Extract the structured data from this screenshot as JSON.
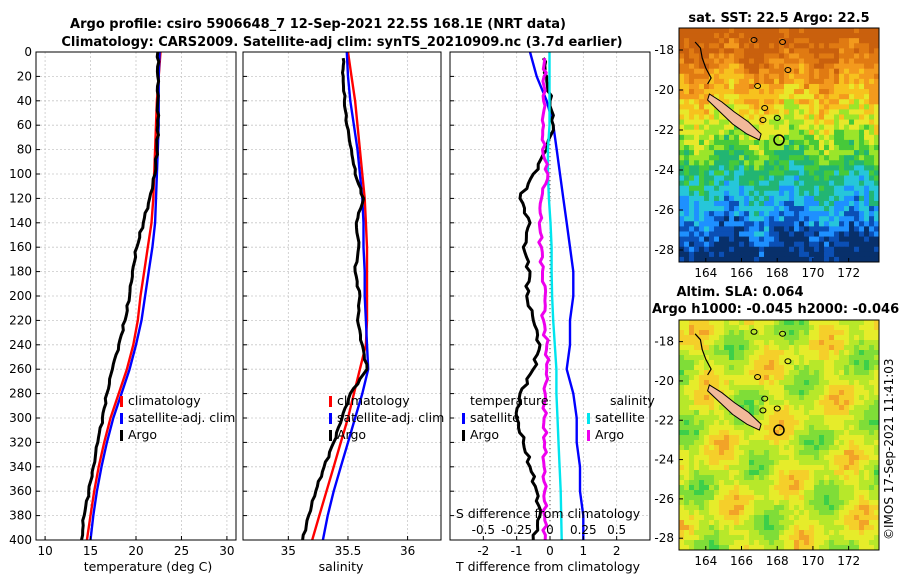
{
  "figure": {
    "title_line1": "Argo profile: csiro 5906648_7 12-Sep-2021 22.5S 168.1E (NRT data)",
    "title_line2": "Climatology: CARS2009. Satellite-adj clim: synTS_20210909.nc (3.7d earlier)",
    "credit": "©IMOS 17-Sep-2021 11:41:03"
  },
  "colors": {
    "climatology": "#ff0000",
    "satellite": "#0000ff",
    "argo": "#000000",
    "satellite_s": "#00e5ee",
    "argo_s": "#ee00ee",
    "land": "#f2b99a"
  },
  "chart_data": [
    {
      "type": "line",
      "id": "temperature",
      "xlabel": "temperature (deg C)",
      "ylabel": "",
      "xlim": [
        9,
        31
      ],
      "xticks": [
        10,
        15,
        20,
        25,
        30
      ],
      "ylim": [
        0,
        400
      ],
      "yticks": [
        0,
        20,
        40,
        60,
        80,
        100,
        120,
        140,
        160,
        180,
        200,
        220,
        240,
        260,
        280,
        300,
        320,
        340,
        360,
        380,
        400
      ],
      "y_reversed": true,
      "grid": true,
      "legend": [
        "climatology",
        "satellite-adj. clim",
        "Argo"
      ],
      "series": [
        {
          "name": "climatology",
          "color": "#ff0000",
          "x": [
            22.7,
            22.5,
            22.3,
            22.2,
            22.1,
            22.0,
            21.9,
            21.7,
            21.3,
            20.9,
            20.5,
            20.2,
            19.7,
            19.0,
            18.1,
            17.2,
            16.5,
            15.9,
            15.4,
            15.0,
            14.6
          ],
          "y": [
            0,
            20,
            40,
            60,
            80,
            100,
            120,
            140,
            160,
            180,
            200,
            220,
            240,
            260,
            280,
            300,
            320,
            340,
            360,
            380,
            400
          ]
        },
        {
          "name": "satellite-adj. clim",
          "color": "#0000ff",
          "x": [
            22.6,
            22.5,
            22.5,
            22.5,
            22.4,
            22.3,
            22.2,
            22.1,
            21.8,
            21.4,
            21.0,
            20.6,
            20.0,
            19.3,
            18.4,
            17.5,
            16.8,
            16.2,
            15.7,
            15.3,
            15.0
          ],
          "y": [
            0,
            20,
            40,
            60,
            80,
            100,
            120,
            140,
            160,
            180,
            200,
            220,
            240,
            260,
            280,
            300,
            320,
            340,
            360,
            380,
            400
          ]
        },
        {
          "name": "Argo",
          "color": "#000000",
          "x": [
            22.4,
            22.4,
            22.4,
            22.4,
            22.3,
            22.1,
            21.5,
            20.8,
            20.1,
            19.6,
            19.3,
            18.8,
            18.1,
            17.4,
            16.8,
            16.3,
            15.8,
            15.3,
            14.8,
            14.3,
            14.0
          ],
          "y": [
            0,
            20,
            40,
            60,
            80,
            100,
            120,
            140,
            160,
            180,
            200,
            220,
            240,
            260,
            280,
            300,
            320,
            340,
            360,
            380,
            400
          ]
        }
      ]
    },
    {
      "type": "line",
      "id": "salinity",
      "xlabel": "salinity",
      "xlim": [
        34.62,
        36.28
      ],
      "xticks": [
        35,
        35.5,
        36
      ],
      "ylim": [
        0,
        400
      ],
      "y_reversed": true,
      "grid": true,
      "legend": [
        "climatology",
        "satellite-adj. clim",
        "Argo"
      ],
      "series": [
        {
          "name": "climatology",
          "color": "#ff0000",
          "x": [
            35.5,
            35.53,
            35.56,
            35.58,
            35.6,
            35.62,
            35.64,
            35.65,
            35.66,
            35.66,
            35.66,
            35.66,
            35.65,
            35.6,
            35.55,
            35.5,
            35.44,
            35.38,
            35.32,
            35.26,
            35.2
          ],
          "y": [
            0,
            20,
            40,
            60,
            80,
            100,
            120,
            140,
            160,
            180,
            200,
            220,
            240,
            260,
            280,
            300,
            320,
            340,
            360,
            380,
            400
          ]
        },
        {
          "name": "satellite-adj. clim",
          "color": "#0000ff",
          "x": [
            35.49,
            35.5,
            35.52,
            35.55,
            35.58,
            35.6,
            35.62,
            35.63,
            35.63,
            35.64,
            35.64,
            35.65,
            35.66,
            35.67,
            35.62,
            35.56,
            35.5,
            35.44,
            35.38,
            35.33,
            35.29
          ],
          "y": [
            0,
            20,
            40,
            60,
            80,
            100,
            120,
            140,
            160,
            180,
            200,
            220,
            240,
            260,
            280,
            300,
            320,
            340,
            360,
            380,
            400
          ]
        },
        {
          "name": "Argo",
          "color": "#000000",
          "x": [
            35.46,
            35.46,
            35.47,
            35.49,
            35.53,
            35.56,
            35.63,
            35.57,
            35.59,
            35.56,
            35.6,
            35.58,
            35.62,
            35.66,
            35.52,
            35.45,
            35.38,
            35.3,
            35.23,
            35.17,
            35.12
          ],
          "y": [
            5,
            20,
            40,
            60,
            80,
            100,
            120,
            140,
            160,
            180,
            200,
            220,
            240,
            260,
            280,
            300,
            320,
            340,
            360,
            380,
            400
          ]
        }
      ]
    },
    {
      "type": "line",
      "id": "difference",
      "xlabel": "T difference from climatology",
      "xlabel_top": "S difference from climatology",
      "xlim": [
        -3.0,
        3.0
      ],
      "xticks": [
        -2,
        -1,
        0,
        1,
        2
      ],
      "sticks": [
        "-0.5",
        "-0.25",
        "0",
        "0.25",
        "0.5"
      ],
      "ylim": [
        0,
        400
      ],
      "y_reversed": true,
      "grid": true,
      "legend_titles": [
        "temperature",
        "salinity"
      ],
      "legend": [
        "satellite",
        "Argo",
        "satellite",
        "Argo"
      ],
      "series": [
        {
          "name": "T satellite",
          "color": "#0000ff",
          "x": [
            -0.6,
            -0.4,
            -0.1,
            0.1,
            0.2,
            0.3,
            0.4,
            0.5,
            0.6,
            0.7,
            0.7,
            0.6,
            0.6,
            0.5,
            0.7,
            0.8,
            0.8,
            0.9,
            0.9,
            1.0,
            1.0
          ],
          "y": [
            0,
            20,
            40,
            60,
            80,
            100,
            120,
            140,
            160,
            180,
            200,
            220,
            240,
            260,
            280,
            300,
            320,
            340,
            360,
            380,
            400
          ]
        },
        {
          "name": "T Argo",
          "color": "#000000",
          "x": [
            -0.2,
            -0.1,
            0.0,
            0.1,
            -0.1,
            -0.5,
            -0.9,
            -0.6,
            -0.8,
            -0.6,
            -0.7,
            -0.5,
            -0.3,
            -0.5,
            -0.9,
            -1.0,
            -0.8,
            -0.6,
            -0.4,
            -0.3,
            -0.5
          ],
          "y": [
            5,
            20,
            40,
            60,
            80,
            100,
            120,
            140,
            160,
            180,
            200,
            220,
            240,
            260,
            280,
            300,
            320,
            340,
            360,
            380,
            400
          ]
        },
        {
          "name": "S satellite",
          "color": "#00e5ee",
          "x": [
            -0.004,
            -0.004,
            -0.004,
            -0.004,
            -0.016,
            -0.016,
            -0.008,
            0.004,
            0.012,
            0.012,
            0.016,
            0.024,
            0.036,
            0.048,
            0.048,
            0.056,
            0.064,
            0.072,
            0.08,
            0.084,
            0.088
          ],
          "y": [
            0,
            20,
            40,
            60,
            80,
            100,
            120,
            140,
            160,
            180,
            200,
            220,
            240,
            260,
            280,
            300,
            320,
            340,
            360,
            380,
            400
          ]
        },
        {
          "name": "S Argo",
          "color": "#ee00ee",
          "x": [
            -0.04,
            -0.044,
            -0.048,
            -0.048,
            -0.056,
            -0.016,
            -0.064,
            -0.08,
            -0.064,
            -0.056,
            -0.036,
            -0.048,
            -0.024,
            -0.024,
            -0.036,
            -0.044,
            -0.04,
            -0.044,
            -0.04,
            -0.04,
            -0.036
          ],
          "y": [
            5,
            20,
            40,
            60,
            80,
            100,
            120,
            140,
            160,
            180,
            200,
            220,
            240,
            260,
            280,
            300,
            320,
            340,
            360,
            380,
            400
          ]
        }
      ]
    },
    {
      "type": "heatmap",
      "id": "sst_map",
      "title": "sat. SST: 22.5 Argo: 22.5",
      "xticks": [
        164,
        166,
        168,
        170,
        172
      ],
      "yticks": [
        -18,
        -20,
        -22,
        -24,
        -26,
        -28
      ],
      "xlim": [
        162.5,
        173.7
      ],
      "ylim": [
        -28.6,
        -16.9
      ],
      "profile_location": [
        168.1,
        -22.5
      ]
    },
    {
      "type": "heatmap",
      "id": "sla_map",
      "title_line1": "Altim. SLA: 0.064",
      "title_line2": "Argo h1000: -0.045 h2000: -0.046",
      "xticks": [
        164,
        166,
        168,
        170,
        172
      ],
      "yticks": [
        -18,
        -20,
        -22,
        -24,
        -26,
        -28
      ],
      "xlim": [
        162.5,
        173.7
      ],
      "ylim": [
        -28.6,
        -16.9
      ],
      "profile_location": [
        168.1,
        -22.5
      ]
    }
  ]
}
